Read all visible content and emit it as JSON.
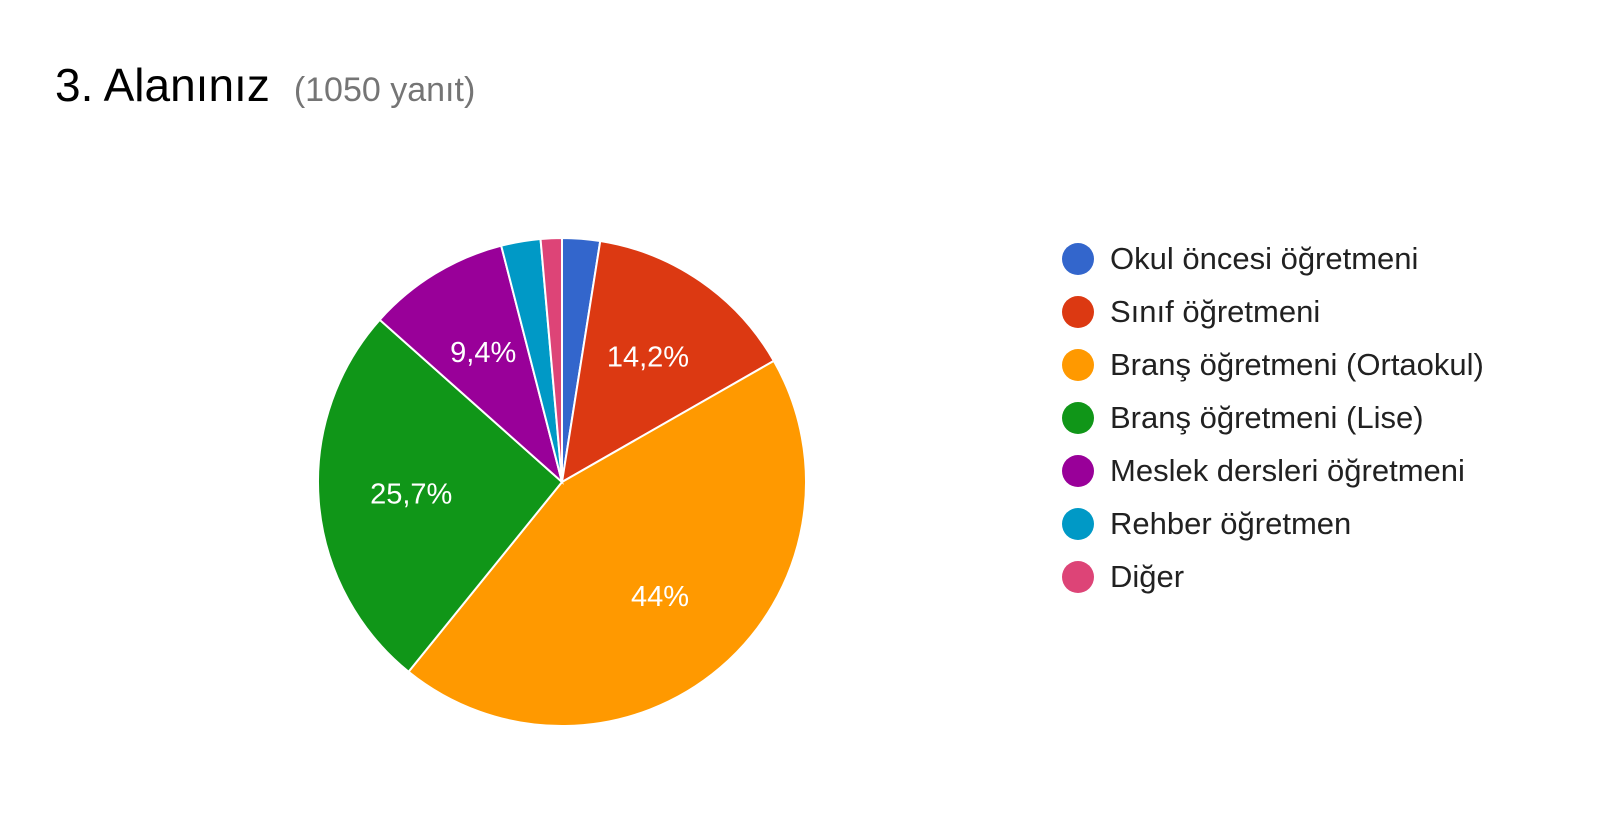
{
  "header": {
    "title": "3. Alanınız",
    "response_count": "(1050 yanıt)"
  },
  "chart_data": {
    "type": "pie",
    "start_angle_deg": 90,
    "direction": "clockwise",
    "legend_position": "right",
    "slices": [
      {
        "label": "Okul öncesi öğretmeni",
        "value": 2.5,
        "color": "#3366cc",
        "display": ""
      },
      {
        "label": "Sınıf öğretmeni",
        "value": 14.2,
        "color": "#dc3912",
        "display": "14,2%"
      },
      {
        "label": "Branş öğretmeni (Ortaokul)",
        "value": 44,
        "color": "#ff9900",
        "display": "44%"
      },
      {
        "label": "Branş öğretmeni (Lise)",
        "value": 25.7,
        "color": "#109618",
        "display": "25,7%"
      },
      {
        "label": "Meslek dersleri öğretmeni",
        "value": 9.4,
        "color": "#990099",
        "display": "9,4%"
      },
      {
        "label": "Rehber öğretmen",
        "value": 2.6,
        "color": "#0099c6",
        "display": ""
      },
      {
        "label": "Diğer",
        "value": 1.4,
        "color": "#dd4477",
        "display": ""
      }
    ]
  }
}
